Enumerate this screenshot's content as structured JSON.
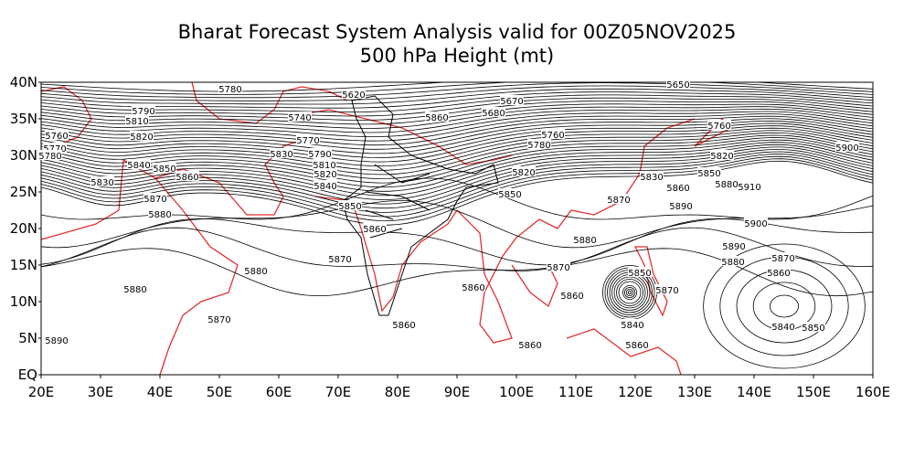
{
  "header": {
    "title": "Bharat Forecast System Analysis valid for 00Z05NOV2025",
    "subtitle": "500 hPa Height (mt)"
  },
  "map": {
    "latitude_labels": [
      "EQ",
      "5N",
      "10N",
      "15N",
      "20N",
      "25N",
      "30N",
      "35N",
      "40N"
    ],
    "longitude_labels": [
      "20E",
      "30E",
      "40E",
      "50E",
      "60E",
      "70E",
      "80E",
      "90E",
      "100E",
      "110E",
      "120E",
      "130E",
      "140E",
      "150E",
      "160E"
    ],
    "contour_labels": [
      "5780",
      "5790",
      "5810",
      "5820",
      "5760",
      "5770",
      "5780",
      "5840",
      "5850",
      "5860",
      "5830",
      "5870",
      "5880",
      "5740",
      "5620",
      "5770",
      "5790",
      "5830",
      "5810",
      "5820",
      "5840",
      "5850",
      "5860",
      "5870",
      "5880",
      "5880",
      "5870",
      "5890",
      "5860",
      "5680",
      "5670",
      "5760",
      "5780",
      "5820",
      "5850",
      "5870",
      "5880",
      "5870",
      "5860",
      "5860",
      "5860",
      "5860",
      "5850",
      "5870",
      "5840",
      "5860",
      "5830",
      "5850",
      "5860",
      "5880",
      "5890",
      "5910",
      "5900",
      "5820",
      "5760",
      "5900",
      "5890",
      "5880",
      "5870",
      "5860",
      "5840",
      "5850",
      "5650"
    ]
  }
}
